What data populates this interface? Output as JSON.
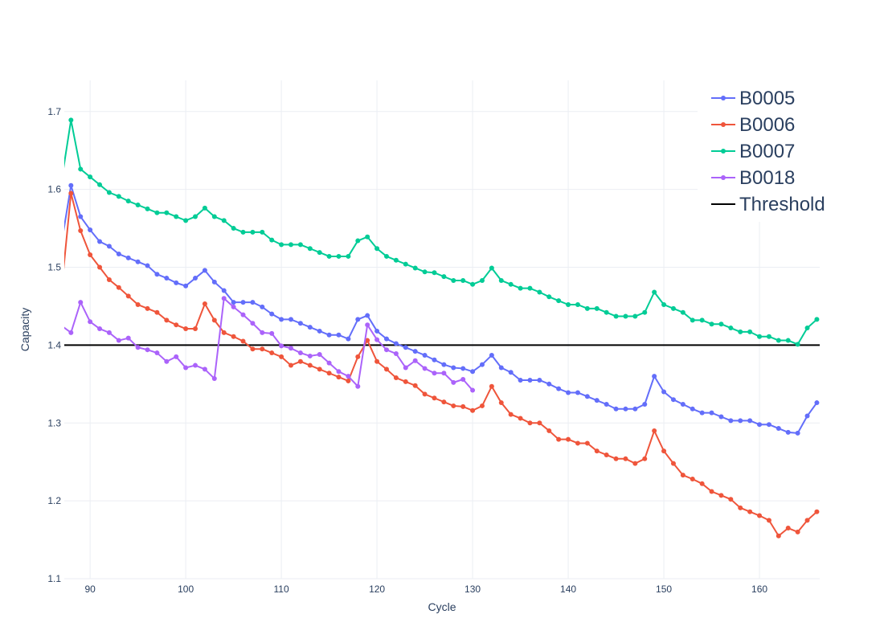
{
  "chart_data": {
    "type": "line",
    "title": "",
    "xlabel": "Cycle",
    "ylabel": "Capacity",
    "xlim": [
      87.3,
      166.3
    ],
    "ylim": [
      1.1,
      1.74
    ],
    "xticks": [
      90,
      100,
      110,
      120,
      130,
      140,
      150,
      160
    ],
    "yticks": [
      1.1,
      1.2,
      1.3,
      1.4,
      1.5,
      1.6,
      1.7
    ],
    "xtick_labels": [
      "90",
      "100",
      "110",
      "120",
      "130",
      "140",
      "150",
      "160"
    ],
    "ytick_labels": [
      "1.1",
      "1.2",
      "1.3",
      "1.4",
      "1.5",
      "1.6",
      "1.7"
    ],
    "grid": true,
    "legend_position": "top-right",
    "threshold": {
      "name": "Threshold",
      "y": 1.4,
      "color": "#000000"
    },
    "series": [
      {
        "name": "B0005",
        "color": "#636efa",
        "x_start": 87,
        "values": [
          1.53,
          1.605,
          1.565,
          1.548,
          1.533,
          1.527,
          1.517,
          1.512,
          1.507,
          1.502,
          1.491,
          1.486,
          1.48,
          1.476,
          1.486,
          1.496,
          1.481,
          1.47,
          1.455,
          1.455,
          1.455,
          1.449,
          1.44,
          1.433,
          1.433,
          1.428,
          1.423,
          1.418,
          1.413,
          1.413,
          1.408,
          1.433,
          1.438,
          1.418,
          1.408,
          1.402,
          1.397,
          1.392,
          1.387,
          1.381,
          1.375,
          1.371,
          1.37,
          1.366,
          1.375,
          1.387,
          1.371,
          1.365,
          1.355,
          1.355,
          1.355,
          1.35,
          1.344,
          1.339,
          1.339,
          1.334,
          1.329,
          1.324,
          1.318,
          1.318,
          1.318,
          1.324,
          1.36,
          1.34,
          1.33,
          1.324,
          1.318,
          1.313,
          1.313,
          1.308,
          1.303,
          1.303,
          1.303,
          1.298,
          1.298,
          1.293,
          1.288,
          1.287,
          1.309,
          1.326
        ]
      },
      {
        "name": "B0006",
        "color": "#ef553b",
        "x_start": 87,
        "values": [
          1.47,
          1.595,
          1.547,
          1.516,
          1.5,
          1.484,
          1.474,
          1.463,
          1.452,
          1.447,
          1.442,
          1.432,
          1.426,
          1.421,
          1.421,
          1.453,
          1.432,
          1.416,
          1.411,
          1.405,
          1.395,
          1.395,
          1.39,
          1.385,
          1.374,
          1.379,
          1.374,
          1.369,
          1.364,
          1.359,
          1.354,
          1.385,
          1.406,
          1.379,
          1.369,
          1.358,
          1.353,
          1.348,
          1.337,
          1.332,
          1.327,
          1.322,
          1.321,
          1.316,
          1.322,
          1.347,
          1.326,
          1.311,
          1.306,
          1.3,
          1.3,
          1.29,
          1.279,
          1.279,
          1.274,
          1.274,
          1.264,
          1.259,
          1.254,
          1.254,
          1.248,
          1.254,
          1.29,
          1.264,
          1.248,
          1.233,
          1.228,
          1.222,
          1.212,
          1.207,
          1.202,
          1.191,
          1.186,
          1.181,
          1.175,
          1.155,
          1.165,
          1.16,
          1.175,
          1.186
        ]
      },
      {
        "name": "B0007",
        "color": "#00cc96",
        "x_start": 87,
        "values": [
          1.61,
          1.689,
          1.626,
          1.616,
          1.606,
          1.596,
          1.591,
          1.585,
          1.58,
          1.575,
          1.57,
          1.57,
          1.565,
          1.56,
          1.565,
          1.576,
          1.565,
          1.56,
          1.55,
          1.545,
          1.545,
          1.545,
          1.535,
          1.529,
          1.529,
          1.529,
          1.524,
          1.519,
          1.514,
          1.514,
          1.514,
          1.534,
          1.539,
          1.524,
          1.514,
          1.509,
          1.504,
          1.499,
          1.494,
          1.493,
          1.488,
          1.483,
          1.483,
          1.478,
          1.483,
          1.499,
          1.483,
          1.478,
          1.473,
          1.473,
          1.468,
          1.462,
          1.457,
          1.452,
          1.452,
          1.447,
          1.447,
          1.442,
          1.437,
          1.437,
          1.437,
          1.442,
          1.468,
          1.452,
          1.447,
          1.442,
          1.432,
          1.432,
          1.427,
          1.427,
          1.422,
          1.417,
          1.417,
          1.411,
          1.411,
          1.406,
          1.406,
          1.401,
          1.422,
          1.433
        ]
      },
      {
        "name": "B0018",
        "color": "#ab63fa",
        "x_start": 87,
        "values": [
          1.425,
          1.416,
          1.455,
          1.43,
          1.421,
          1.416,
          1.406,
          1.409,
          1.397,
          1.394,
          1.39,
          1.379,
          1.385,
          1.371,
          1.374,
          1.369,
          1.357,
          1.46,
          1.449,
          1.439,
          1.428,
          1.416,
          1.415,
          1.399,
          1.396,
          1.39,
          1.386,
          1.388,
          1.377,
          1.366,
          1.36,
          1.347,
          1.426,
          1.407,
          1.394,
          1.389,
          1.371,
          1.38,
          1.37,
          1.364,
          1.364,
          1.352,
          1.356,
          1.342
        ]
      }
    ]
  }
}
